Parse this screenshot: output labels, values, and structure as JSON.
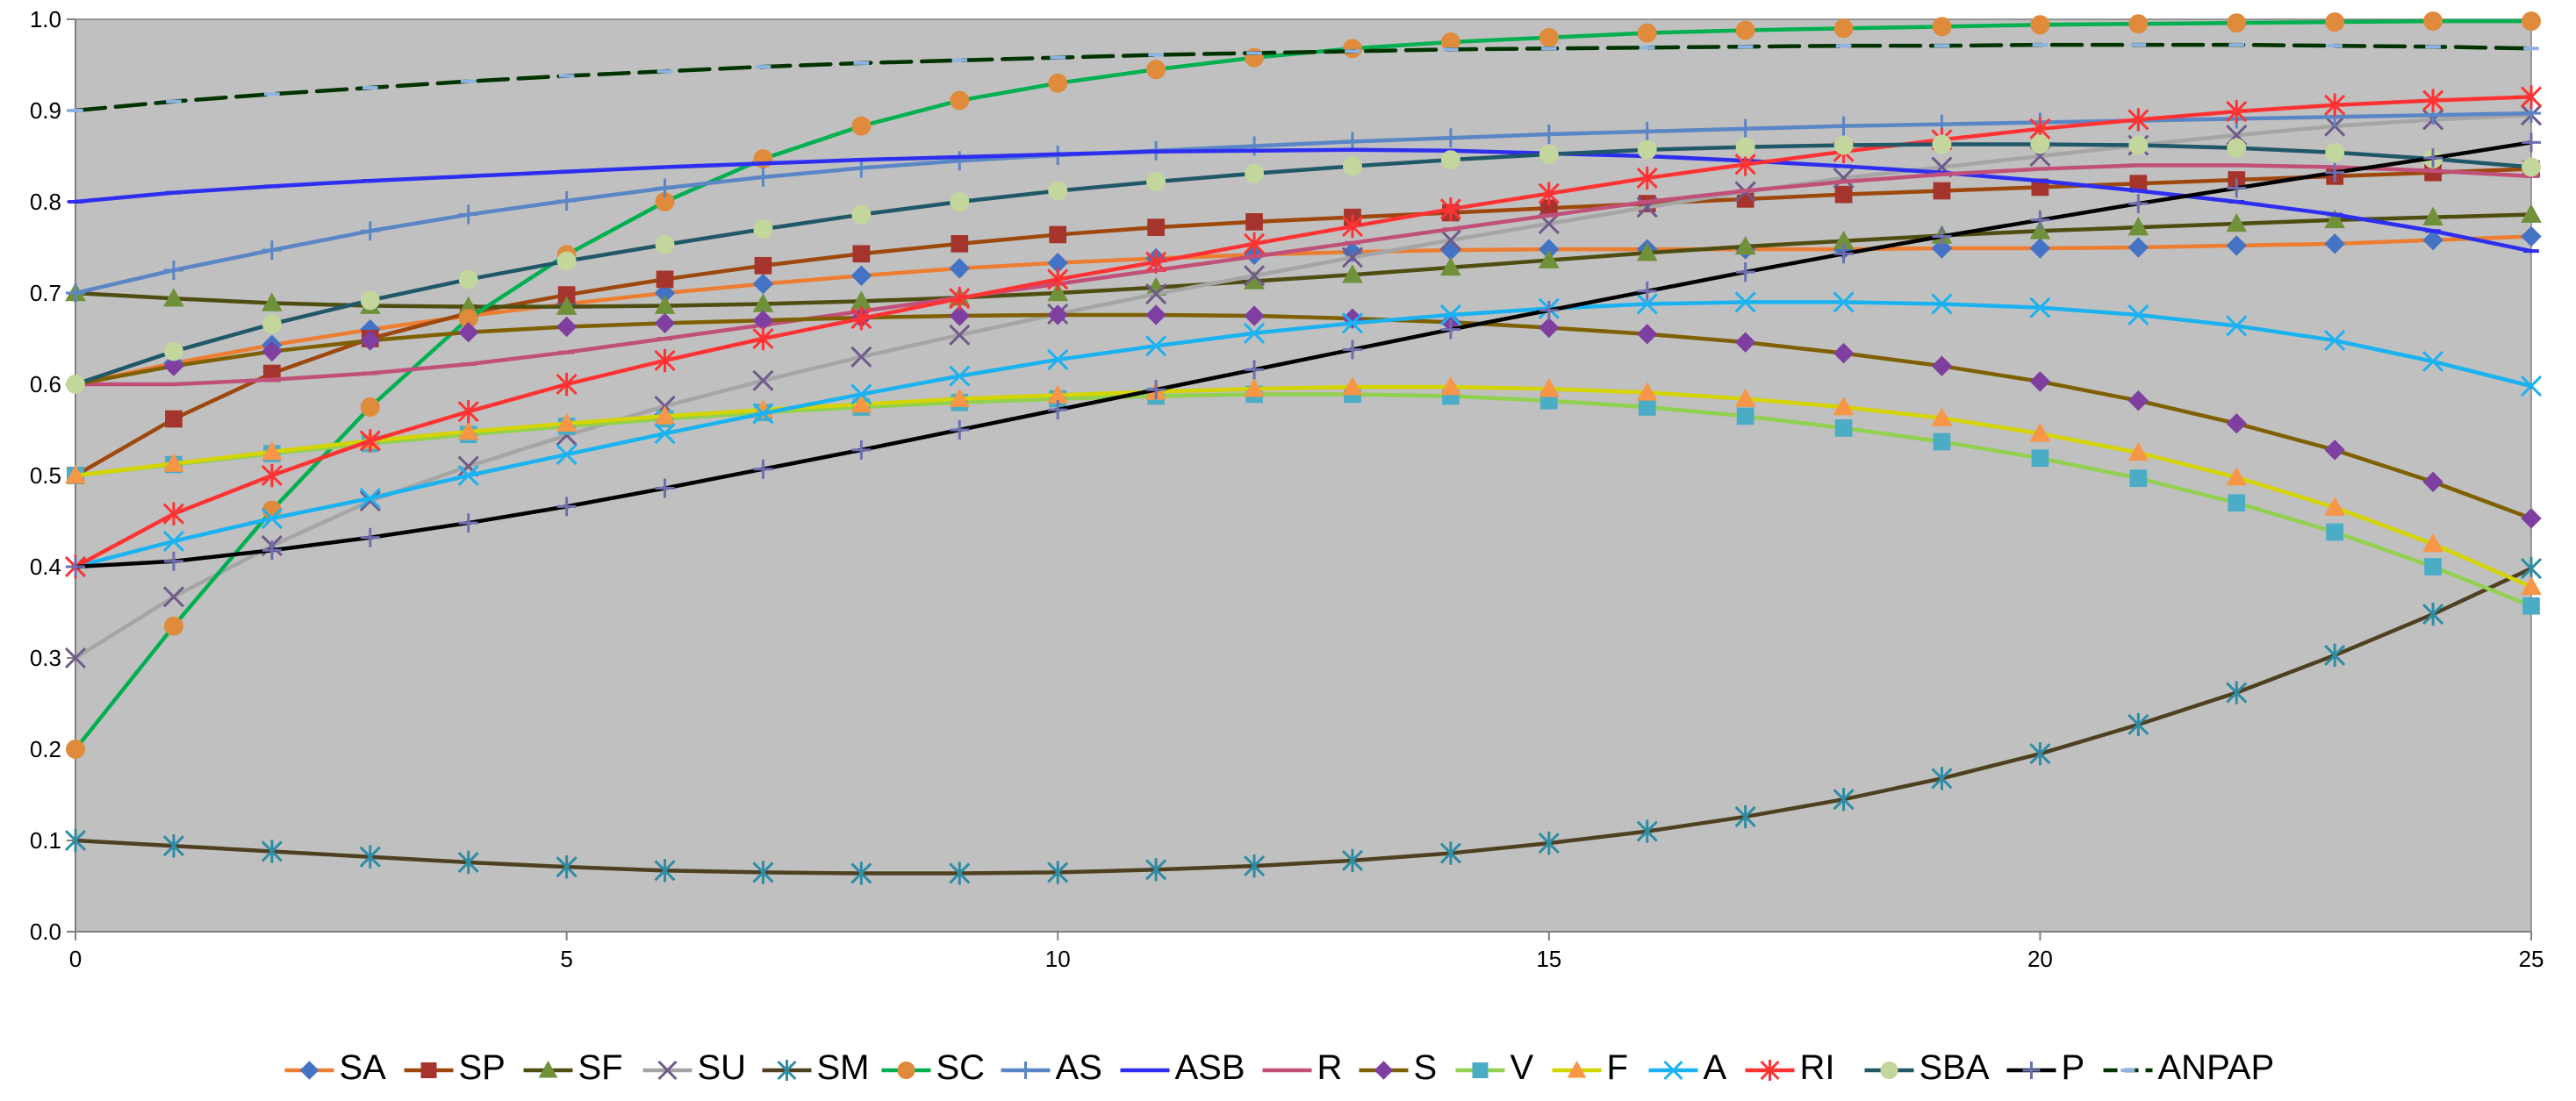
{
  "chart_data": {
    "type": "line",
    "title": "",
    "xlabel": "",
    "ylabel": "",
    "xlim": [
      0,
      25
    ],
    "ylim": [
      0.0,
      1.0
    ],
    "x_ticks": [
      "0",
      "5",
      "10",
      "15",
      "20",
      "25"
    ],
    "y_ticks": [
      "0.0",
      "0.1",
      "0.2",
      "0.3",
      "0.4",
      "0.5",
      "0.6",
      "0.7",
      "0.8",
      "0.9",
      "1.0"
    ],
    "grid": false,
    "plot_background": "#c0c0c0",
    "legend": "bottom",
    "x": [
      0,
      1,
      2,
      3,
      4,
      5,
      6,
      7,
      8,
      9,
      10,
      11,
      12,
      13,
      14,
      15,
      16,
      17,
      18,
      19,
      20,
      21,
      22,
      23,
      24,
      25
    ],
    "series": [
      {
        "name": "SA",
        "color": "#ed7d31",
        "marker_color": "#4472c4",
        "marker": "diamond",
        "dash": "",
        "values": [
          0.6,
          0.623,
          0.643,
          0.66,
          0.675,
          0.688,
          0.7,
          0.71,
          0.719,
          0.727,
          0.733,
          0.738,
          0.742,
          0.745,
          0.747,
          0.748,
          0.748,
          0.748,
          0.748,
          0.749,
          0.749,
          0.75,
          0.752,
          0.754,
          0.758,
          0.762
        ]
      },
      {
        "name": "SP",
        "color": "#9e480e",
        "marker_color": "#a5342c",
        "marker": "square",
        "dash": "",
        "values": [
          0.5,
          0.562,
          0.612,
          0.65,
          0.678,
          0.698,
          0.715,
          0.73,
          0.743,
          0.754,
          0.764,
          0.772,
          0.778,
          0.783,
          0.788,
          0.793,
          0.798,
          0.803,
          0.808,
          0.812,
          0.816,
          0.82,
          0.824,
          0.828,
          0.832,
          0.836
        ]
      },
      {
        "name": "SF",
        "color": "#4e4d12",
        "marker_color": "#70913a",
        "marker": "triangle",
        "dash": "",
        "values": [
          0.7,
          0.694,
          0.689,
          0.686,
          0.685,
          0.685,
          0.686,
          0.688,
          0.691,
          0.695,
          0.7,
          0.706,
          0.713,
          0.72,
          0.728,
          0.736,
          0.744,
          0.751,
          0.757,
          0.763,
          0.768,
          0.772,
          0.776,
          0.78,
          0.783,
          0.786
        ]
      },
      {
        "name": "SU",
        "color": "#a5a5a5",
        "marker_color": "#6f5a8a",
        "marker": "x",
        "dash": "",
        "values": [
          0.3,
          0.367,
          0.423,
          0.472,
          0.51,
          0.544,
          0.576,
          0.604,
          0.63,
          0.654,
          0.677,
          0.699,
          0.719,
          0.739,
          0.758,
          0.776,
          0.794,
          0.811,
          0.826,
          0.838,
          0.85,
          0.862,
          0.873,
          0.883,
          0.89,
          0.895
        ]
      },
      {
        "name": "SM",
        "color": "#4e4121",
        "marker_color": "#2e8ca5",
        "marker": "star",
        "dash": "",
        "values": [
          0.1,
          0.094,
          0.088,
          0.082,
          0.076,
          0.071,
          0.067,
          0.065,
          0.064,
          0.064,
          0.065,
          0.068,
          0.072,
          0.078,
          0.086,
          0.097,
          0.11,
          0.126,
          0.145,
          0.168,
          0.195,
          0.227,
          0.262,
          0.303,
          0.348,
          0.398
        ]
      },
      {
        "name": "SC",
        "color": "#00b050",
        "marker_color": "#e08a3c",
        "marker": "circle",
        "dash": "",
        "values": [
          0.2,
          0.335,
          0.462,
          0.575,
          0.672,
          0.742,
          0.8,
          0.847,
          0.883,
          0.911,
          0.93,
          0.945,
          0.958,
          0.968,
          0.975,
          0.98,
          0.985,
          0.988,
          0.99,
          0.992,
          0.994,
          0.995,
          0.996,
          0.997,
          0.998,
          0.998
        ]
      },
      {
        "name": "AS",
        "color": "#5b86c5",
        "marker_color": "#5b86c5",
        "marker": "plus",
        "dash": "",
        "values": [
          0.7,
          0.725,
          0.747,
          0.768,
          0.786,
          0.801,
          0.815,
          0.827,
          0.837,
          0.845,
          0.851,
          0.856,
          0.861,
          0.866,
          0.87,
          0.874,
          0.877,
          0.88,
          0.883,
          0.885,
          0.887,
          0.889,
          0.891,
          0.893,
          0.895,
          0.897
        ]
      },
      {
        "name": "ASB",
        "color": "#2e2ef0",
        "marker_color": "#2e2ef0",
        "marker": "dash",
        "dash": "",
        "values": [
          0.8,
          0.81,
          0.817,
          0.823,
          0.828,
          0.833,
          0.838,
          0.842,
          0.846,
          0.849,
          0.852,
          0.855,
          0.856,
          0.857,
          0.856,
          0.853,
          0.85,
          0.845,
          0.839,
          0.832,
          0.823,
          0.812,
          0.8,
          0.786,
          0.768,
          0.746
        ]
      },
      {
        "name": "R",
        "color": "#c0507a",
        "marker_color": "#c0507a",
        "marker": "dash",
        "dash": "",
        "values": [
          0.6,
          0.6,
          0.605,
          0.612,
          0.622,
          0.635,
          0.65,
          0.665,
          0.68,
          0.695,
          0.71,
          0.725,
          0.74,
          0.755,
          0.77,
          0.785,
          0.8,
          0.812,
          0.822,
          0.83,
          0.836,
          0.84,
          0.84,
          0.838,
          0.834,
          0.828
        ]
      },
      {
        "name": "S",
        "color": "#7f6000",
        "marker_color": "#7f3fa0",
        "marker": "diamond",
        "dash": "",
        "values": [
          0.6,
          0.62,
          0.636,
          0.648,
          0.657,
          0.663,
          0.667,
          0.67,
          0.673,
          0.675,
          0.676,
          0.676,
          0.675,
          0.672,
          0.668,
          0.662,
          0.655,
          0.646,
          0.634,
          0.62,
          0.603,
          0.582,
          0.557,
          0.528,
          0.493,
          0.453
        ]
      },
      {
        "name": "V",
        "color": "#92d050",
        "marker_color": "#4bacc6",
        "marker": "square",
        "dash": "",
        "values": [
          0.5,
          0.512,
          0.524,
          0.535,
          0.545,
          0.554,
          0.562,
          0.569,
          0.575,
          0.58,
          0.584,
          0.587,
          0.589,
          0.589,
          0.587,
          0.582,
          0.575,
          0.565,
          0.552,
          0.537,
          0.519,
          0.497,
          0.47,
          0.438,
          0.4,
          0.357
        ]
      },
      {
        "name": "F",
        "color": "#d4d400",
        "marker_color": "#f79646",
        "marker": "triangle",
        "dash": "",
        "values": [
          0.5,
          0.513,
          0.526,
          0.538,
          0.548,
          0.557,
          0.565,
          0.572,
          0.578,
          0.584,
          0.588,
          0.592,
          0.595,
          0.597,
          0.597,
          0.595,
          0.591,
          0.584,
          0.575,
          0.563,
          0.546,
          0.525,
          0.498,
          0.465,
          0.425,
          0.378
        ]
      },
      {
        "name": "A",
        "color": "#1ab2f0",
        "marker_color": "#1ab2f0",
        "marker": "x",
        "dash": "",
        "values": [
          0.4,
          0.428,
          0.453,
          0.475,
          0.5,
          0.523,
          0.546,
          0.568,
          0.589,
          0.609,
          0.627,
          0.642,
          0.656,
          0.667,
          0.676,
          0.683,
          0.688,
          0.69,
          0.69,
          0.688,
          0.684,
          0.676,
          0.664,
          0.648,
          0.625,
          0.598
        ]
      },
      {
        "name": "RI",
        "color": "#ff3333",
        "marker_color": "#ff3333",
        "marker": "star",
        "dash": "",
        "values": [
          0.4,
          0.458,
          0.5,
          0.538,
          0.57,
          0.6,
          0.626,
          0.65,
          0.672,
          0.694,
          0.715,
          0.734,
          0.754,
          0.773,
          0.792,
          0.809,
          0.826,
          0.841,
          0.855,
          0.868,
          0.88,
          0.89,
          0.899,
          0.906,
          0.911,
          0.915
        ]
      },
      {
        "name": "SBA",
        "color": "#215868",
        "marker_color": "#c3d69b",
        "marker": "circle",
        "dash": "",
        "values": [
          0.6,
          0.636,
          0.666,
          0.692,
          0.715,
          0.735,
          0.753,
          0.77,
          0.786,
          0.8,
          0.812,
          0.822,
          0.831,
          0.839,
          0.846,
          0.852,
          0.857,
          0.86,
          0.862,
          0.863,
          0.863,
          0.862,
          0.859,
          0.854,
          0.847,
          0.838
        ]
      },
      {
        "name": "P",
        "color": "#000000",
        "marker_color": "#6f6fb0",
        "marker": "plus",
        "dash": "",
        "values": [
          0.4,
          0.406,
          0.418,
          0.432,
          0.448,
          0.466,
          0.486,
          0.507,
          0.528,
          0.55,
          0.572,
          0.594,
          0.616,
          0.638,
          0.66,
          0.681,
          0.702,
          0.723,
          0.743,
          0.762,
          0.78,
          0.798,
          0.815,
          0.832,
          0.848,
          0.865
        ]
      },
      {
        "name": "ANPAP",
        "color": "#003300",
        "marker_color": "#8db3e2",
        "marker": "dash",
        "dash": "34,12",
        "values": [
          0.9,
          0.91,
          0.918,
          0.925,
          0.932,
          0.938,
          0.943,
          0.948,
          0.952,
          0.955,
          0.958,
          0.961,
          0.963,
          0.965,
          0.967,
          0.968,
          0.969,
          0.97,
          0.971,
          0.971,
          0.972,
          0.972,
          0.972,
          0.971,
          0.97,
          0.968
        ]
      }
    ]
  }
}
